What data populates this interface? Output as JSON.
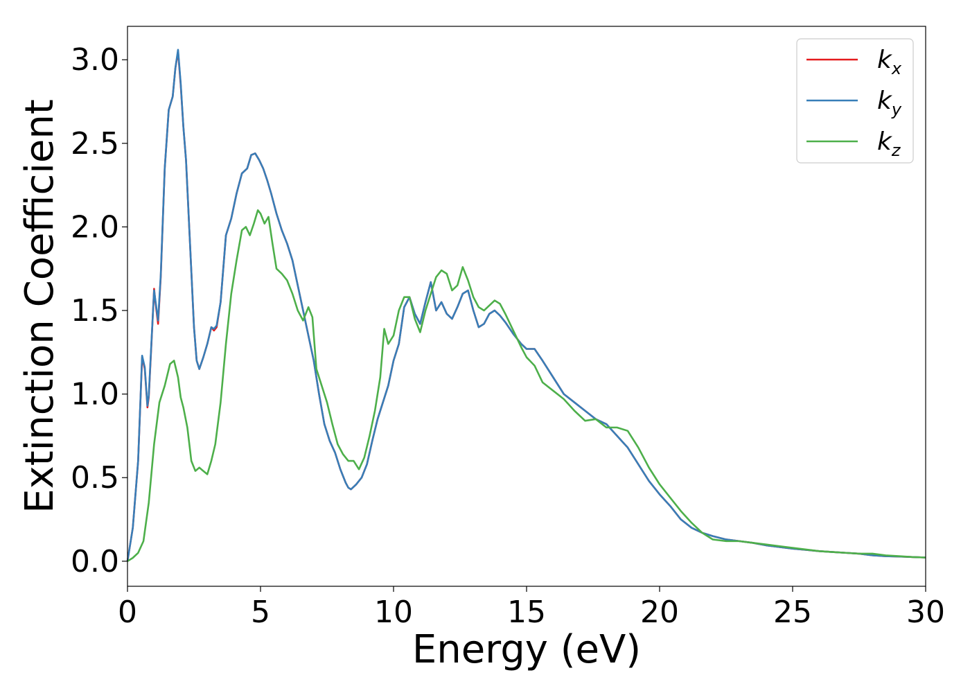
{
  "chart_data": {
    "type": "line",
    "xlabel": "Energy (eV)",
    "ylabel": "Extinction Coefficient",
    "xlim": [
      0,
      30
    ],
    "ylim": [
      -0.15,
      3.2
    ],
    "x_ticks": [
      "0",
      "5",
      "10",
      "15",
      "20",
      "25",
      "30"
    ],
    "x_tick_values": [
      0,
      5,
      10,
      15,
      20,
      25,
      30
    ],
    "y_ticks": [
      "0.0",
      "0.5",
      "1.0",
      "1.5",
      "2.0",
      "2.5",
      "3.0"
    ],
    "y_tick_values": [
      0,
      0.5,
      1.0,
      1.5,
      2.0,
      2.5,
      3.0
    ],
    "grid": false,
    "legend_position": "top-right",
    "series": [
      {
        "name": "k",
        "subscript": "x",
        "color": "#e41a1c",
        "x": [
          0,
          0.2,
          0.4,
          0.55,
          0.65,
          0.75,
          0.8,
          0.9,
          1.0,
          1.05,
          1.15,
          1.25,
          1.4,
          1.55,
          1.7,
          1.8,
          1.9,
          2.0,
          2.1,
          2.2,
          2.35,
          2.5,
          2.6,
          2.7,
          2.85,
          3.0,
          3.15,
          3.25,
          3.35,
          3.5,
          3.7,
          3.9,
          4.1,
          4.3,
          4.5,
          4.65,
          4.8,
          4.95,
          5.1,
          5.25,
          5.4,
          5.6,
          5.8,
          6.0,
          6.2,
          6.4,
          6.6,
          6.8,
          7.0,
          7.2,
          7.4,
          7.6,
          7.8,
          8.0,
          8.2,
          8.3,
          8.4,
          8.6,
          8.8,
          9.0,
          9.2,
          9.4,
          9.6,
          9.8,
          10.0,
          10.2,
          10.4,
          10.6,
          10.8,
          11.0,
          11.2,
          11.4,
          11.6,
          11.8,
          12.0,
          12.2,
          12.4,
          12.6,
          12.8,
          13.0,
          13.2,
          13.4,
          13.6,
          13.8,
          14.0,
          14.2,
          14.5,
          14.8,
          15.0,
          15.3,
          15.6,
          16.0,
          16.4,
          16.8,
          17.2,
          17.6,
          18.0,
          18.4,
          18.8,
          19.2,
          19.6,
          20.0,
          20.4,
          20.8,
          21.2,
          21.6,
          22.0,
          22.5,
          23.0,
          23.5,
          24.0,
          24.5,
          25.0,
          25.5,
          26.0,
          26.5,
          27.0,
          27.5,
          28.0,
          28.5,
          29.0,
          29.5,
          30.0
        ],
        "values": [
          0.0,
          0.2,
          0.6,
          1.22,
          1.15,
          0.92,
          0.98,
          1.3,
          1.63,
          1.55,
          1.42,
          1.7,
          2.35,
          2.7,
          2.78,
          2.95,
          3.05,
          2.85,
          2.6,
          2.4,
          1.9,
          1.4,
          1.2,
          1.15,
          1.22,
          1.3,
          1.4,
          1.38,
          1.4,
          1.55,
          1.95,
          2.05,
          2.2,
          2.32,
          2.35,
          2.43,
          2.44,
          2.4,
          2.35,
          2.28,
          2.2,
          2.08,
          1.98,
          1.9,
          1.8,
          1.65,
          1.5,
          1.35,
          1.2,
          1.0,
          0.82,
          0.72,
          0.65,
          0.55,
          0.47,
          0.44,
          0.43,
          0.46,
          0.5,
          0.58,
          0.72,
          0.85,
          0.95,
          1.05,
          1.2,
          1.3,
          1.52,
          1.58,
          1.48,
          1.42,
          1.55,
          1.67,
          1.5,
          1.55,
          1.48,
          1.45,
          1.52,
          1.6,
          1.62,
          1.5,
          1.4,
          1.42,
          1.48,
          1.5,
          1.47,
          1.43,
          1.36,
          1.3,
          1.27,
          1.27,
          1.2,
          1.1,
          1.0,
          0.95,
          0.9,
          0.85,
          0.82,
          0.75,
          0.68,
          0.58,
          0.48,
          0.4,
          0.33,
          0.25,
          0.2,
          0.17,
          0.15,
          0.13,
          0.12,
          0.11,
          0.095,
          0.085,
          0.075,
          0.068,
          0.06,
          0.055,
          0.05,
          0.045,
          0.035,
          0.03,
          0.028,
          0.025,
          0.022
        ]
      },
      {
        "name": "k",
        "subscript": "y",
        "color": "#377eb8",
        "x": [
          0,
          0.2,
          0.4,
          0.55,
          0.65,
          0.75,
          0.8,
          0.9,
          1.0,
          1.05,
          1.15,
          1.25,
          1.4,
          1.55,
          1.7,
          1.8,
          1.9,
          2.0,
          2.1,
          2.2,
          2.35,
          2.5,
          2.6,
          2.7,
          2.85,
          3.0,
          3.15,
          3.25,
          3.35,
          3.5,
          3.7,
          3.9,
          4.1,
          4.3,
          4.5,
          4.65,
          4.8,
          4.95,
          5.1,
          5.25,
          5.4,
          5.6,
          5.8,
          6.0,
          6.2,
          6.4,
          6.6,
          6.8,
          7.0,
          7.2,
          7.4,
          7.6,
          7.8,
          8.0,
          8.2,
          8.3,
          8.4,
          8.6,
          8.8,
          9.0,
          9.2,
          9.4,
          9.6,
          9.8,
          10.0,
          10.2,
          10.4,
          10.6,
          10.8,
          11.0,
          11.2,
          11.4,
          11.6,
          11.8,
          12.0,
          12.2,
          12.4,
          12.6,
          12.8,
          13.0,
          13.2,
          13.4,
          13.6,
          13.8,
          14.0,
          14.2,
          14.5,
          14.8,
          15.0,
          15.3,
          15.6,
          16.0,
          16.4,
          16.8,
          17.2,
          17.6,
          18.0,
          18.4,
          18.8,
          19.2,
          19.6,
          20.0,
          20.4,
          20.8,
          21.2,
          21.6,
          22.0,
          22.5,
          23.0,
          23.5,
          24.0,
          24.5,
          25.0,
          25.5,
          26.0,
          26.5,
          27.0,
          27.5,
          28.0,
          28.5,
          29.0,
          29.5,
          30.0
        ],
        "values": [
          0.0,
          0.2,
          0.6,
          1.23,
          1.16,
          0.93,
          0.99,
          1.31,
          1.62,
          1.56,
          1.44,
          1.71,
          2.35,
          2.7,
          2.78,
          2.95,
          3.06,
          2.86,
          2.6,
          2.4,
          1.9,
          1.4,
          1.2,
          1.15,
          1.22,
          1.3,
          1.4,
          1.39,
          1.41,
          1.55,
          1.95,
          2.05,
          2.2,
          2.32,
          2.35,
          2.43,
          2.44,
          2.4,
          2.35,
          2.28,
          2.2,
          2.08,
          1.98,
          1.9,
          1.8,
          1.65,
          1.5,
          1.35,
          1.2,
          1.0,
          0.82,
          0.72,
          0.65,
          0.55,
          0.47,
          0.44,
          0.43,
          0.46,
          0.5,
          0.58,
          0.72,
          0.85,
          0.95,
          1.05,
          1.2,
          1.3,
          1.52,
          1.58,
          1.48,
          1.42,
          1.55,
          1.67,
          1.5,
          1.55,
          1.48,
          1.45,
          1.52,
          1.6,
          1.62,
          1.5,
          1.4,
          1.42,
          1.48,
          1.5,
          1.47,
          1.43,
          1.36,
          1.3,
          1.27,
          1.27,
          1.2,
          1.1,
          1.0,
          0.95,
          0.9,
          0.85,
          0.82,
          0.75,
          0.68,
          0.58,
          0.48,
          0.4,
          0.33,
          0.25,
          0.2,
          0.17,
          0.15,
          0.13,
          0.12,
          0.11,
          0.095,
          0.085,
          0.075,
          0.068,
          0.06,
          0.055,
          0.05,
          0.045,
          0.035,
          0.03,
          0.028,
          0.025,
          0.022
        ]
      },
      {
        "name": "k",
        "subscript": "z",
        "color": "#4daf4a",
        "x": [
          0,
          0.2,
          0.4,
          0.6,
          0.8,
          1.0,
          1.2,
          1.4,
          1.6,
          1.75,
          1.9,
          2.0,
          2.1,
          2.25,
          2.4,
          2.55,
          2.7,
          2.85,
          3.0,
          3.15,
          3.3,
          3.5,
          3.7,
          3.9,
          4.1,
          4.3,
          4.45,
          4.6,
          4.75,
          4.9,
          5.0,
          5.15,
          5.3,
          5.45,
          5.6,
          5.8,
          6.0,
          6.2,
          6.4,
          6.6,
          6.8,
          6.95,
          7.1,
          7.3,
          7.5,
          7.7,
          7.9,
          8.1,
          8.3,
          8.5,
          8.7,
          8.9,
          9.1,
          9.3,
          9.5,
          9.65,
          9.8,
          10.0,
          10.2,
          10.4,
          10.6,
          10.8,
          11.0,
          11.2,
          11.4,
          11.6,
          11.8,
          12.0,
          12.2,
          12.4,
          12.6,
          12.8,
          13.0,
          13.2,
          13.4,
          13.6,
          13.8,
          14.0,
          14.2,
          14.5,
          14.8,
          15.0,
          15.3,
          15.6,
          16.0,
          16.4,
          16.8,
          17.2,
          17.6,
          18.0,
          18.4,
          18.8,
          19.2,
          19.6,
          20.0,
          20.4,
          20.8,
          21.2,
          21.6,
          22.0,
          22.5,
          23.0,
          23.5,
          24.0,
          24.5,
          25.0,
          25.5,
          26.0,
          26.5,
          27.0,
          27.5,
          28.0,
          28.5,
          29.0,
          29.5,
          30.0
        ],
        "values": [
          0.0,
          0.02,
          0.05,
          0.12,
          0.35,
          0.7,
          0.95,
          1.05,
          1.18,
          1.2,
          1.1,
          0.98,
          0.92,
          0.8,
          0.6,
          0.54,
          0.56,
          0.54,
          0.52,
          0.6,
          0.7,
          0.95,
          1.3,
          1.6,
          1.8,
          1.98,
          2.0,
          1.95,
          2.02,
          2.1,
          2.08,
          2.02,
          2.06,
          1.9,
          1.75,
          1.72,
          1.68,
          1.6,
          1.5,
          1.44,
          1.52,
          1.46,
          1.15,
          1.05,
          0.95,
          0.82,
          0.7,
          0.64,
          0.6,
          0.6,
          0.55,
          0.62,
          0.75,
          0.9,
          1.1,
          1.39,
          1.3,
          1.35,
          1.5,
          1.58,
          1.58,
          1.45,
          1.37,
          1.5,
          1.6,
          1.7,
          1.74,
          1.72,
          1.62,
          1.65,
          1.76,
          1.68,
          1.58,
          1.52,
          1.5,
          1.53,
          1.56,
          1.54,
          1.48,
          1.38,
          1.28,
          1.22,
          1.17,
          1.07,
          1.02,
          0.97,
          0.9,
          0.84,
          0.85,
          0.8,
          0.8,
          0.78,
          0.68,
          0.56,
          0.46,
          0.38,
          0.3,
          0.23,
          0.17,
          0.13,
          0.12,
          0.12,
          0.11,
          0.1,
          0.09,
          0.08,
          0.07,
          0.06,
          0.055,
          0.05,
          0.045,
          0.045,
          0.035,
          0.03,
          0.025,
          0.022
        ]
      }
    ]
  }
}
